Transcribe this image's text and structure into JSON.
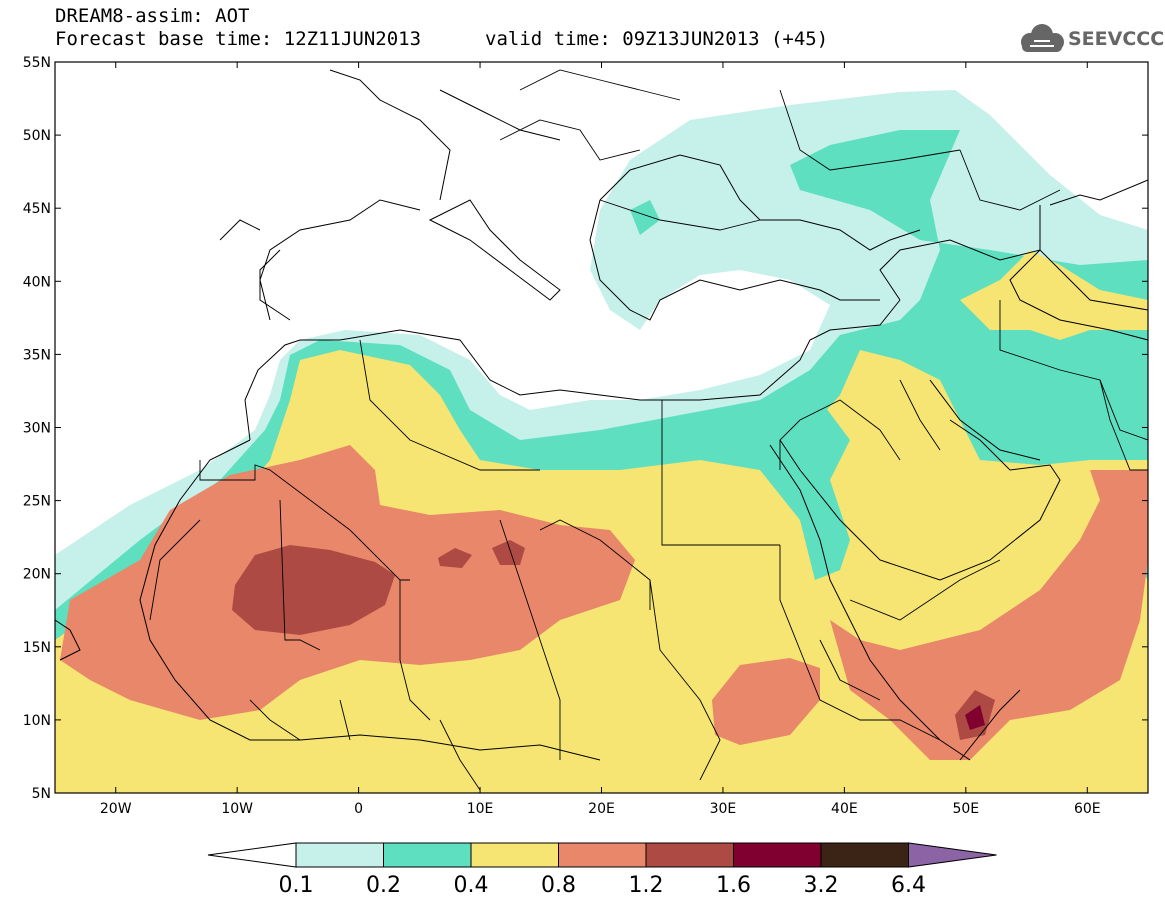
{
  "header": {
    "title_line1": "DREAM8-assim: AOT",
    "title_line2": "Forecast base time: 12Z11JUN2013",
    "valid_time": "valid time: 09Z13JUN2013 (+45)",
    "logo_text": "SEEVCCC",
    "logo_icon": "cloud-logo-icon"
  },
  "map": {
    "variable": "AOT",
    "x_ticks": [
      "20W",
      "10W",
      "0",
      "10E",
      "20E",
      "30E",
      "40E",
      "50E",
      "60E"
    ],
    "y_ticks": [
      "55N",
      "50N",
      "45N",
      "40N",
      "35N",
      "30N",
      "25N",
      "20N",
      "15N",
      "10N",
      "5N"
    ],
    "lon_range": [
      -25,
      65
    ],
    "lat_range": [
      5,
      55
    ]
  },
  "colorbar": {
    "labels": [
      "0.1",
      "0.2",
      "0.4",
      "0.8",
      "1.2",
      "1.6",
      "3.2",
      "6.4"
    ],
    "colors": {
      "below": "#ffffff",
      "c1": "#c6f0ea",
      "c2": "#5ddfc0",
      "c3": "#f6e473",
      "c4": "#e8876a",
      "c5": "#ac4a43",
      "c6": "#800030",
      "c7": "#3b2415",
      "above": "#8c64a5"
    }
  }
}
